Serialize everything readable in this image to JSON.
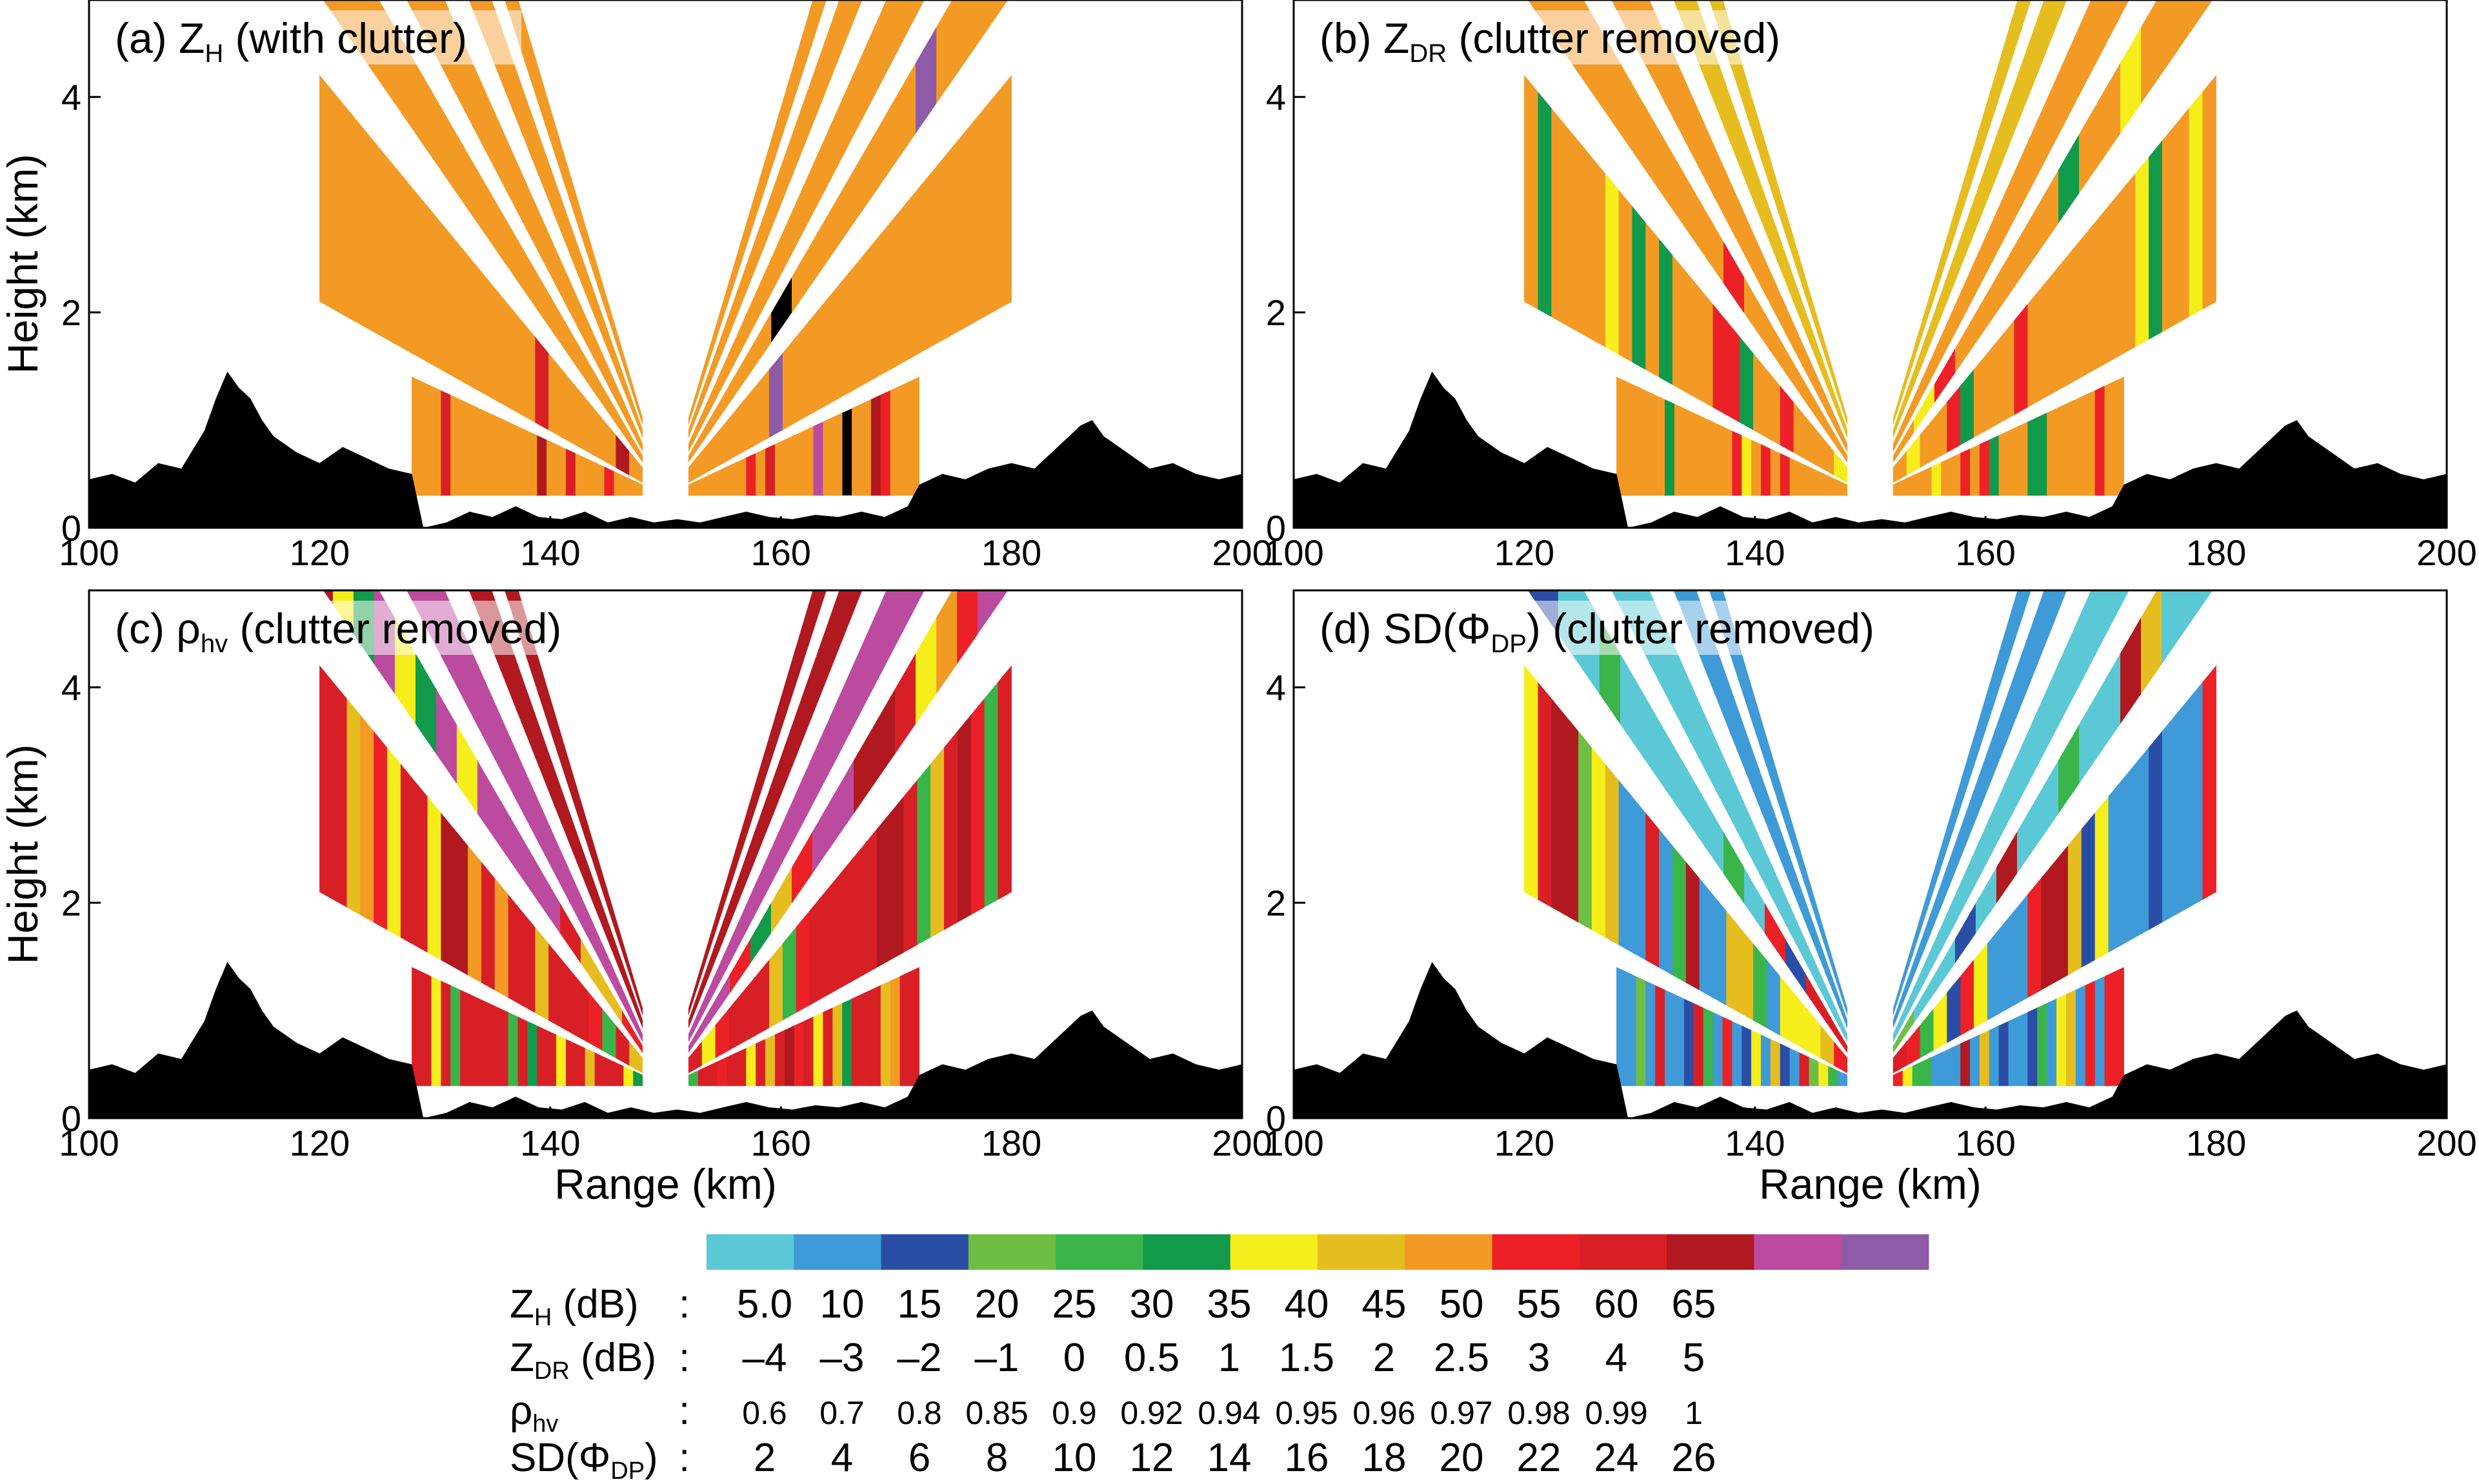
{
  "chart_data": [
    {
      "type": "heatmap",
      "panel": "a",
      "label": "(a) ",
      "var_main": "Z",
      "var_sub": "H",
      "note": " (with clutter)",
      "xlabel": "",
      "ylabel": "Height (km)",
      "xlim": [
        100,
        200
      ],
      "ylim": [
        0,
        4.9
      ],
      "xticks": [
        100,
        120,
        140,
        160,
        180,
        200
      ],
      "yticks": [
        0,
        2,
        4
      ],
      "levels": {
        "upper": 8,
        "mid": 8,
        "low": 8
      },
      "speckle": [
        9,
        10,
        11,
        12,
        13,
        14
      ],
      "speckle_rate": 0.12
    },
    {
      "type": "heatmap",
      "panel": "b",
      "label": "(b) ",
      "var_main": "Z",
      "var_sub": "DR",
      "note": " (clutter removed)",
      "xlabel": "",
      "ylabel": "",
      "xlim": [
        100,
        200
      ],
      "ylim": [
        0,
        4.9
      ],
      "xticks": [
        100,
        120,
        140,
        160,
        180,
        200
      ],
      "yticks": [
        0,
        2,
        4
      ],
      "levels": {
        "upper": 7,
        "mid": 8,
        "low": 8
      },
      "speckle": [
        8,
        9,
        5,
        6
      ],
      "speckle_rate": 0.35
    },
    {
      "type": "heatmap",
      "panel": "c",
      "label": "(c) ",
      "var_main": "ρ",
      "var_sub": "hv",
      "note": " (clutter removed)",
      "xlabel": "Range (km)",
      "ylabel": "Height (km)",
      "xlim": [
        100,
        200
      ],
      "ylim": [
        0,
        4.9
      ],
      "xticks": [
        100,
        120,
        140,
        160,
        180,
        200
      ],
      "yticks": [
        0,
        2,
        4
      ],
      "levels": {
        "upper": 11,
        "mid": 12,
        "low": 10
      },
      "speckle": [
        4,
        5,
        6,
        7,
        8,
        9,
        10,
        11
      ],
      "speckle_rate": 0.55
    },
    {
      "type": "heatmap",
      "panel": "d",
      "label": "(d) ",
      "var_main": "SD(Φ",
      "var_sub": "DP",
      "note": ") (clutter removed)",
      "xlabel": "Range (km)",
      "ylabel": "",
      "xlim": [
        100,
        200
      ],
      "ylim": [
        0,
        4.9
      ],
      "xticks": [
        100,
        120,
        140,
        160,
        180,
        200
      ],
      "yticks": [
        0,
        2,
        4
      ],
      "levels": {
        "upper": 1,
        "mid": 0,
        "low": 1
      },
      "speckle": [
        2,
        3,
        4,
        6,
        7,
        9,
        10,
        11
      ],
      "speckle_rate": 0.5
    }
  ],
  "colorbar": {
    "colors": [
      "#5bc8d6",
      "#3f9ad8",
      "#2a4ea6",
      "#6fbe44",
      "#39b54a",
      "#109a4a",
      "#f5ee1a",
      "#e6bd1f",
      "#f39a25",
      "#ec2127",
      "#d91f26",
      "#b0191f",
      "#bc4ba0",
      "#8e5ba8"
    ],
    "rows": [
      {
        "name": "Z",
        "sub": "H",
        "unit": " (dB)",
        "colon": ":",
        "values": [
          "5.0",
          "10",
          "15",
          "20",
          "25",
          "30",
          "35",
          "40",
          "45",
          "50",
          "55",
          "60",
          "65"
        ]
      },
      {
        "name": "Z",
        "sub": "DR",
        "unit": " (dB)",
        "colon": ":",
        "values": [
          "–4",
          "–3",
          "–2",
          "–1",
          "0",
          "0.5",
          "1",
          "1.5",
          "2",
          "2.5",
          "3",
          "4",
          "5"
        ]
      },
      {
        "name": "ρ",
        "sub": "hv",
        "unit": "",
        "colon": ":",
        "values": [
          "0.6",
          "0.7",
          "0.8",
          "0.85",
          "0.9",
          "0.92",
          "0.94",
          "0.95",
          "0.96",
          "0.97",
          "0.98",
          "0.99",
          "1"
        ]
      },
      {
        "name": "SD(Φ",
        "sub": "DP",
        "unit": ")",
        "colon": ":",
        "values": [
          "2",
          "4",
          "6",
          "8",
          "10",
          "12",
          "14",
          "16",
          "18",
          "20",
          "22",
          "24",
          "26"
        ]
      }
    ]
  }
}
